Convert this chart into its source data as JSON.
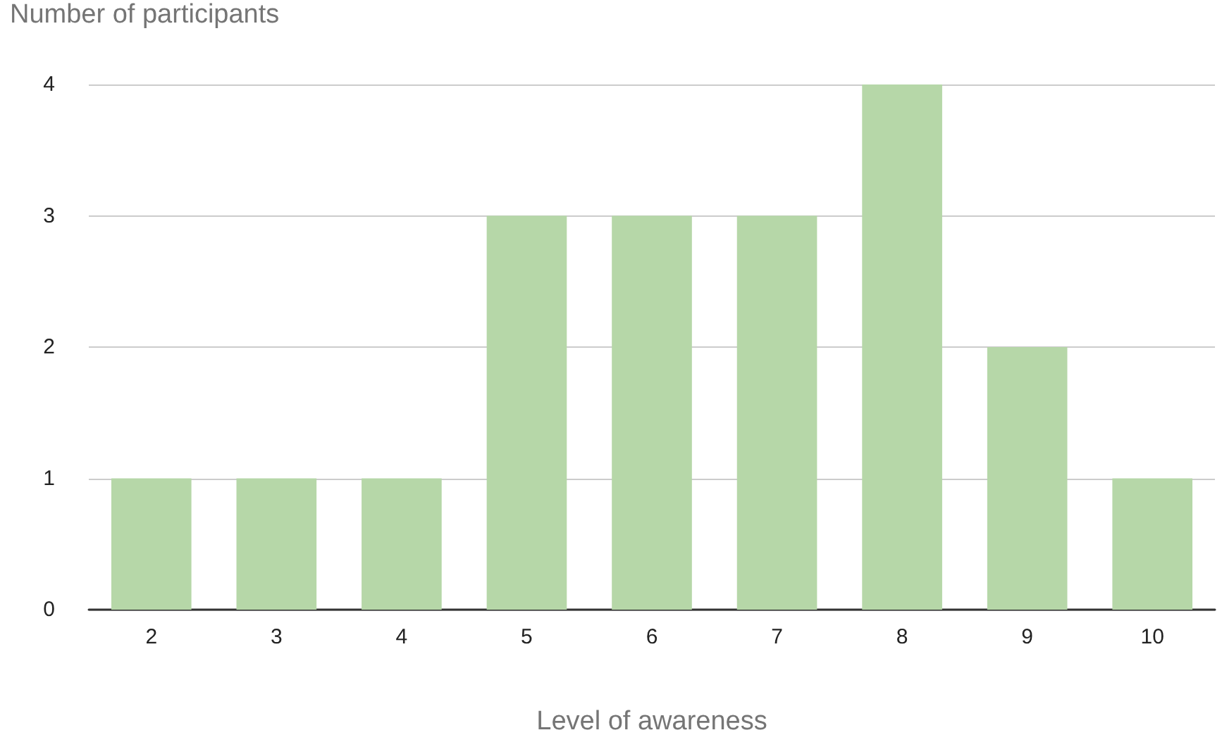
{
  "chart_data": {
    "type": "bar",
    "categories": [
      "2",
      "3",
      "4",
      "5",
      "6",
      "7",
      "8",
      "9",
      "10"
    ],
    "values": [
      1,
      1,
      1,
      3,
      3,
      3,
      4,
      2,
      1
    ],
    "color": "#b6d7a8",
    "xlabel": "Level of awareness",
    "ylabel": "Number of participants",
    "ylim": [
      0,
      4
    ],
    "yticks": [
      0,
      1,
      2,
      3,
      4
    ],
    "grid": "y"
  }
}
